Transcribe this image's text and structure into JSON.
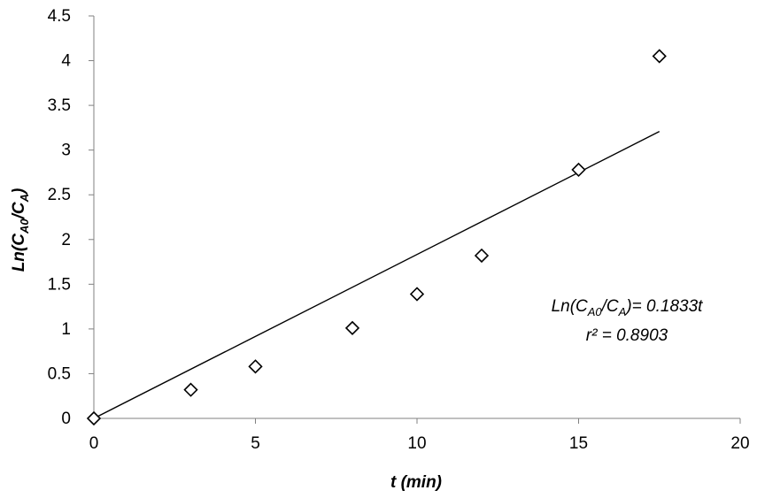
{
  "chart_data": {
    "type": "scatter",
    "xlabel": "t (min)",
    "ylabel": {
      "base": "Ln(C",
      "sub1": "A0",
      "mid": "/C",
      "sub2": "A",
      "end": ")"
    },
    "xlim": [
      0,
      20
    ],
    "ylim": [
      0,
      4.5
    ],
    "x_ticks": [
      "0",
      "5",
      "10",
      "15",
      "20"
    ],
    "y_ticks": [
      "0",
      "0.5",
      "1",
      "1.5",
      "2",
      "2.5",
      "3",
      "3.5",
      "4",
      "4.5"
    ],
    "grid": false,
    "marker": "diamond-open",
    "series": [
      {
        "points": [
          {
            "x": 0,
            "y": 0
          },
          {
            "x": 3,
            "y": 0.32
          },
          {
            "x": 5,
            "y": 0.58
          },
          {
            "x": 8,
            "y": 1.01
          },
          {
            "x": 10,
            "y": 1.39
          },
          {
            "x": 12,
            "y": 1.82
          },
          {
            "x": 15,
            "y": 2.78
          },
          {
            "x": 17.5,
            "y": 4.05
          }
        ]
      }
    ],
    "trendline": {
      "slope": 0.1833,
      "intercept": 0,
      "x_range": [
        0,
        17.5
      ]
    },
    "annotation": {
      "equation": {
        "pre": "Ln(C",
        "sub1": "A0",
        "mid": "/C",
        "sub2": "A",
        "post": ")= 0.1833t"
      },
      "r2": "r² = 0.8903"
    }
  }
}
